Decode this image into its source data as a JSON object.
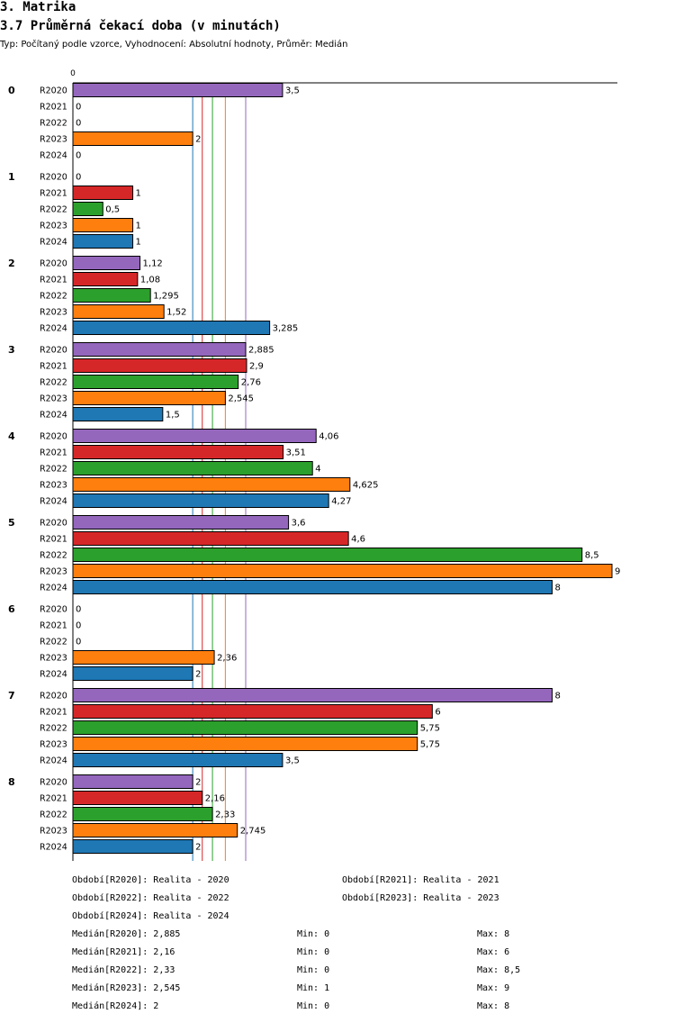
{
  "header": {
    "section": "3. Matrika",
    "title": "3.7 Průměrná čekací doba (v minutách)",
    "subtitle": "Typ: Počítaný podle vzorce, Vyhodnocení: Absolutní hodnoty, Průměr: Medián"
  },
  "chart_data": {
    "type": "bar",
    "orientation": "horizontal",
    "title": "3.7 Průměrná čekací doba (v minutách)",
    "x_tick_label": "0",
    "xlim": [
      0,
      9
    ],
    "groups": [
      "0",
      "1",
      "2",
      "3",
      "4",
      "5",
      "6",
      "7",
      "8"
    ],
    "series": [
      {
        "name": "R2020",
        "color": "#9467bd",
        "values": [
          3.5,
          0,
          1.12,
          2.885,
          4.06,
          3.6,
          0,
          8,
          2
        ],
        "labels": [
          "3,5",
          "0",
          "1,12",
          "2,885",
          "4,06",
          "3,6",
          "0",
          "8",
          "2"
        ]
      },
      {
        "name": "R2021",
        "color": "#d62728",
        "values": [
          0,
          1,
          1.08,
          2.9,
          3.51,
          4.6,
          0,
          6,
          2.16
        ],
        "labels": [
          "0",
          "1",
          "1,08",
          "2,9",
          "3,51",
          "4,6",
          "0",
          "6",
          "2,16"
        ]
      },
      {
        "name": "R2022",
        "color": "#2ca02c",
        "values": [
          0,
          0.5,
          1.295,
          2.76,
          4,
          8.5,
          0,
          5.75,
          2.33
        ],
        "labels": [
          "0",
          "0,5",
          "1,295",
          "2,76",
          "4",
          "8,5",
          "0",
          "5,75",
          "2,33"
        ]
      },
      {
        "name": "R2023",
        "color": "#ff7f0e",
        "values": [
          2,
          1,
          1.52,
          2.545,
          4.625,
          9,
          2.36,
          5.75,
          2.745
        ],
        "labels": [
          "2",
          "1",
          "1,52",
          "2,545",
          "4,625",
          "9",
          "2,36",
          "5,75",
          "2,745"
        ]
      },
      {
        "name": "R2024",
        "color": "#1f77b4",
        "values": [
          0,
          1,
          3.285,
          1.5,
          4.27,
          8,
          2,
          3.5,
          2
        ],
        "labels": [
          "0",
          "1",
          "3,285",
          "1,5",
          "4,27",
          "8",
          "2",
          "3,5",
          "2"
        ]
      }
    ],
    "reference_lines": [
      {
        "series": "R2020",
        "value": 2.885,
        "color": "#9467bd"
      },
      {
        "series": "R2021",
        "value": 2.16,
        "color": "#d62728"
      },
      {
        "series": "R2022",
        "value": 2.33,
        "color": "#2ca02c"
      },
      {
        "series": "R2023",
        "value": 2.545,
        "color": "#ff7f0e"
      },
      {
        "series": "R2024",
        "value": 2,
        "color": "#1f77b4"
      }
    ]
  },
  "legend": {
    "periods": [
      "Období[R2020]: Realita - 2020",
      "Období[R2021]: Realita - 2021",
      "Období[R2022]: Realita - 2022",
      "Období[R2023]: Realita - 2023",
      "Období[R2024]: Realita - 2024"
    ],
    "stats": [
      {
        "median": "Medián[R2020]: 2,885",
        "min": "Min: 0",
        "max": "Max: 8"
      },
      {
        "median": "Medián[R2021]: 2,16",
        "min": "Min: 0",
        "max": "Max: 6"
      },
      {
        "median": "Medián[R2022]: 2,33",
        "min": "Min: 0",
        "max": "Max: 8,5"
      },
      {
        "median": "Medián[R2023]: 2,545",
        "min": "Min: 1",
        "max": "Max: 9"
      },
      {
        "median": "Medián[R2024]: 2",
        "min": "Min: 0",
        "max": "Max: 8"
      }
    ]
  }
}
